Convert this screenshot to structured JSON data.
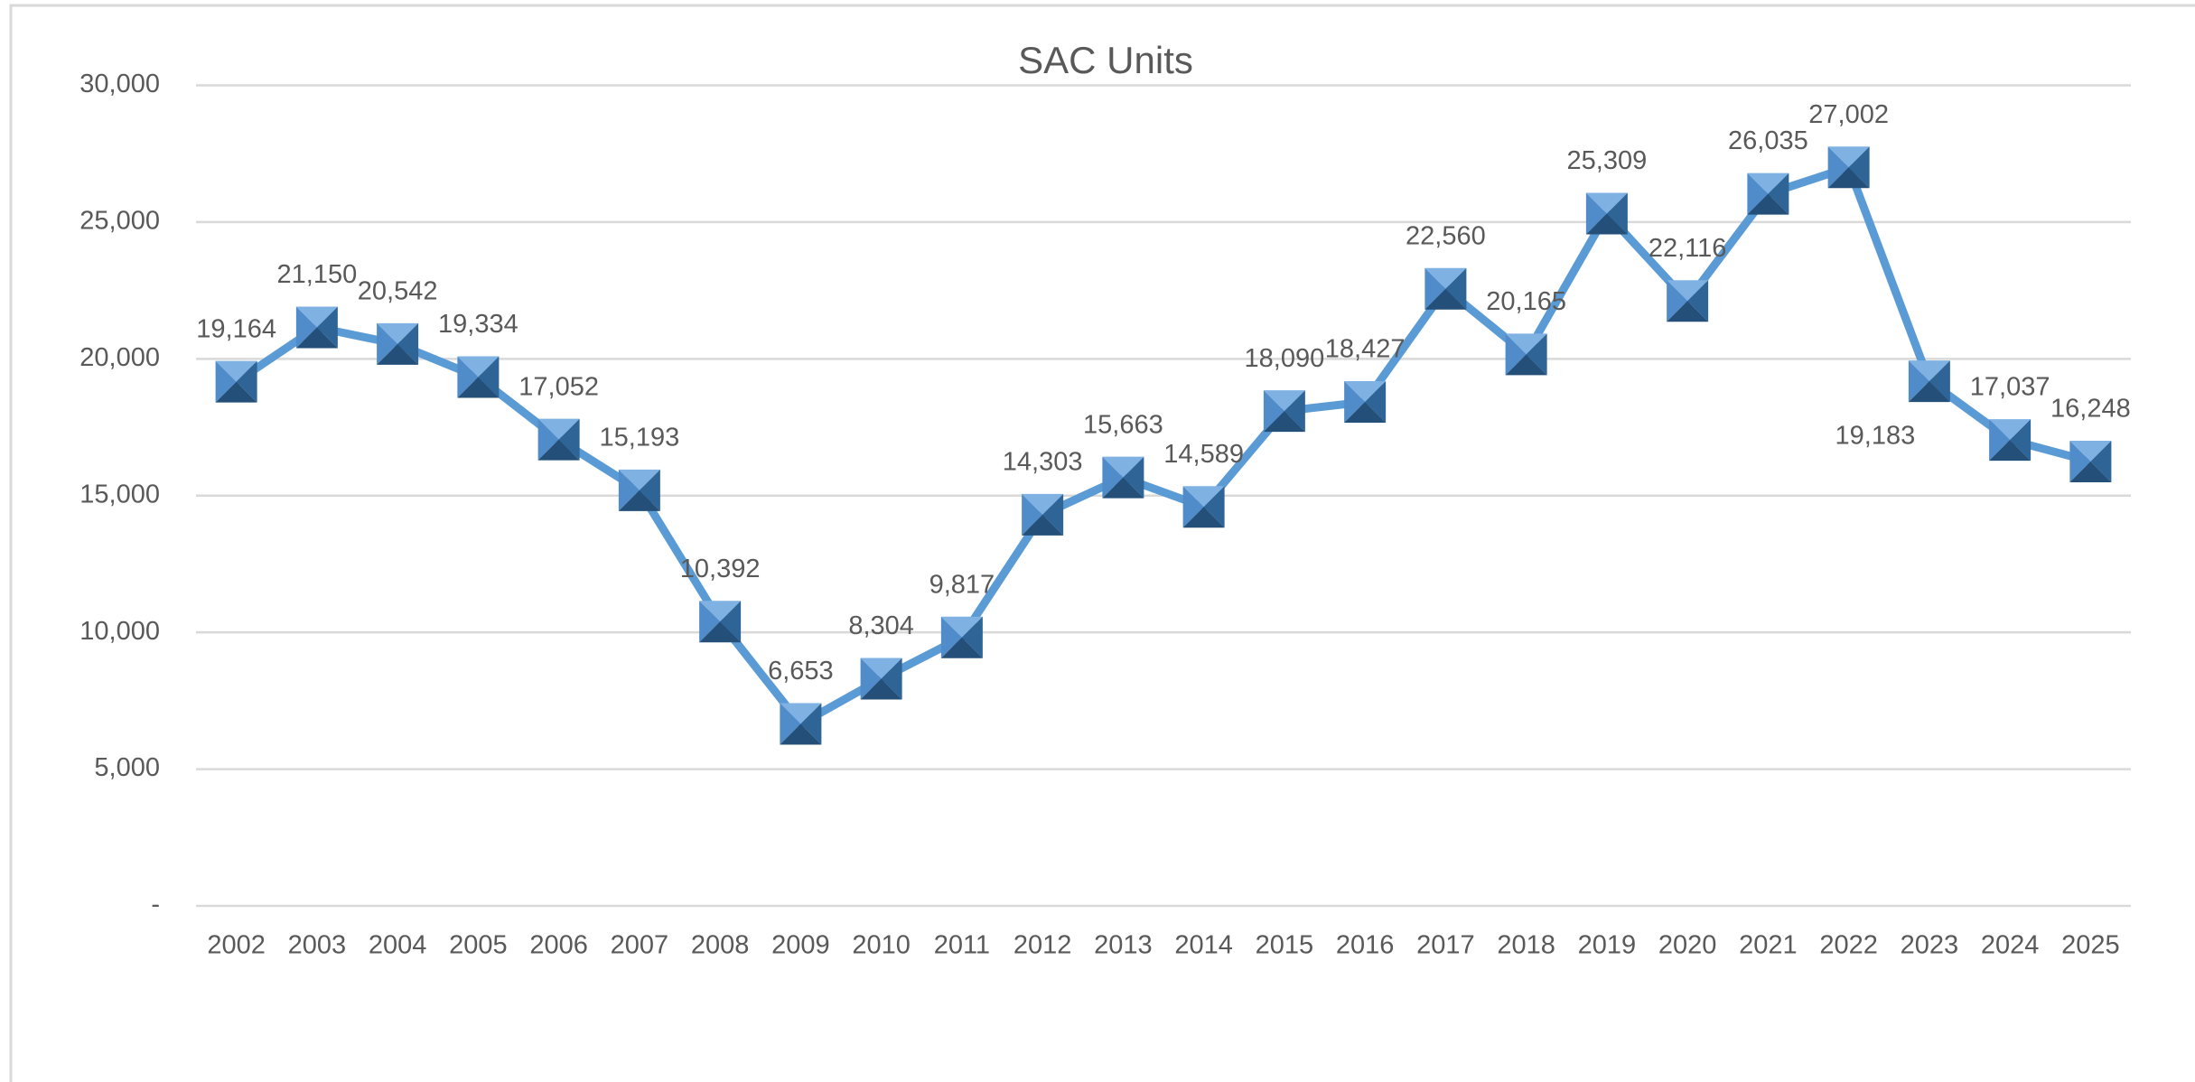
{
  "chart_data": {
    "type": "line",
    "title": "SAC Units",
    "categories": [
      "2002",
      "2003",
      "2004",
      "2005",
      "2006",
      "2007",
      "2008",
      "2009",
      "2010",
      "2011",
      "2012",
      "2013",
      "2014",
      "2015",
      "2016",
      "2017",
      "2018",
      "2019",
      "2020",
      "2021",
      "2022",
      "2023",
      "2024",
      "2025"
    ],
    "series": [
      {
        "name": "SAC Units",
        "color": "#5b9bd5",
        "values": [
          19164,
          21150,
          20542,
          19334,
          17052,
          15193,
          10392,
          6653,
          8304,
          9817,
          14303,
          15663,
          14589,
          18090,
          18427,
          22560,
          20165,
          25309,
          22116,
          26035,
          27002,
          19183,
          17037,
          16248
        ],
        "value_labels": [
          "19,164",
          "21,150",
          "20,542",
          "19,334",
          "17,052",
          "15,193",
          "10,392",
          "6,653",
          "8,304",
          "9,817",
          "14,303",
          "15,663",
          "14,589",
          "18,090",
          "18,427",
          "22,560",
          "20,165",
          "25,309",
          "22,116",
          "26,035",
          "27,002",
          "19,183",
          "17,037",
          "16,248"
        ]
      }
    ],
    "ylim": [
      0,
      30000
    ],
    "yticks": [
      {
        "value": 0,
        "label": "-"
      },
      {
        "value": 5000,
        "label": "5,000"
      },
      {
        "value": 10000,
        "label": "10,000"
      },
      {
        "value": 15000,
        "label": "15,000"
      },
      {
        "value": 20000,
        "label": "20,000"
      },
      {
        "value": 25000,
        "label": "25,000"
      },
      {
        "value": 30000,
        "label": "30,000"
      }
    ],
    "grid": true
  }
}
